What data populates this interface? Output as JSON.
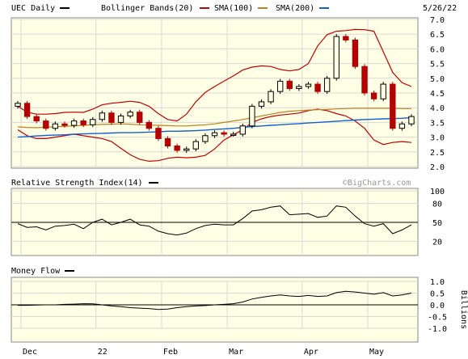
{
  "header": {
    "ticker_label": "UEC Daily",
    "bb_label": "Bollinger Bands(20)",
    "sma100_label": "SMA(100)",
    "sma200_label": "SMA(200)",
    "date": "5/26/22"
  },
  "colors": {
    "panel_bg": "#ffffe5",
    "grid": "#d8d8d8",
    "up_candle": "#000000",
    "down_candle": "#b40000",
    "bollinger": "#c00000",
    "sma100": "#c08020",
    "sma200": "#1060d0",
    "line": "#000000"
  },
  "watermark": "©BigCharts.com",
  "chart_data": [
    {
      "type": "candlestick",
      "title": "UEC Daily",
      "x_labels": [
        "Dec",
        "22",
        "Feb",
        "Mar",
        "Apr",
        "May"
      ],
      "y_ticks": [
        "7.0",
        "6.5",
        "6.0",
        "5.5",
        "5.0",
        "4.5",
        "4.0",
        "3.5",
        "3.0",
        "2.5",
        "2.0"
      ],
      "ylim": [
        2.0,
        7.0
      ],
      "grid": true,
      "series": [
        {
          "name": "Bollinger Bands(20)",
          "upper": [
            4.05,
            3.85,
            3.78,
            3.78,
            3.8,
            3.84,
            3.85,
            3.84,
            3.95,
            4.1,
            4.15,
            4.18,
            4.22,
            4.18,
            4.05,
            3.8,
            3.6,
            3.55,
            3.78,
            4.2,
            4.52,
            4.72,
            4.9,
            5.08,
            5.28,
            5.38,
            5.42,
            5.4,
            5.3,
            5.25,
            5.3,
            5.5,
            6.1,
            6.48,
            6.6,
            6.62,
            6.66,
            6.65,
            6.6,
            5.9,
            5.2,
            4.85,
            4.72
          ],
          "lower": [
            3.25,
            3.05,
            2.95,
            2.95,
            3.0,
            3.05,
            3.1,
            3.05,
            3.0,
            2.95,
            2.85,
            2.62,
            2.4,
            2.25,
            2.18,
            2.2,
            2.28,
            2.32,
            2.3,
            2.32,
            2.38,
            2.6,
            2.9,
            3.08,
            3.25,
            3.5,
            3.62,
            3.7,
            3.75,
            3.78,
            3.82,
            3.9,
            3.95,
            3.9,
            3.8,
            3.72,
            3.55,
            3.3,
            2.9,
            2.75,
            2.82,
            2.85,
            2.82
          ]
        },
        {
          "name": "SMA(100)",
          "values": [
            3.35,
            3.33,
            3.32,
            3.34,
            3.35,
            3.37,
            3.38,
            3.4,
            3.42,
            3.43,
            3.44,
            3.45,
            3.44,
            3.42,
            3.41,
            3.4,
            3.39,
            3.38,
            3.38,
            3.4,
            3.42,
            3.45,
            3.5,
            3.55,
            3.6,
            3.66,
            3.72,
            3.78,
            3.84,
            3.88,
            3.9,
            3.92,
            3.93,
            3.94,
            3.96,
            3.97,
            3.98,
            3.98,
            3.98,
            3.98,
            3.98,
            3.97,
            3.97
          ]
        },
        {
          "name": "SMA(200)",
          "values": [
            3.0,
            3.02,
            3.04,
            3.06,
            3.07,
            3.08,
            3.1,
            3.11,
            3.12,
            3.13,
            3.14,
            3.15,
            3.15,
            3.16,
            3.17,
            3.18,
            3.2,
            3.2,
            3.21,
            3.22,
            3.24,
            3.26,
            3.28,
            3.3,
            3.33,
            3.36,
            3.38,
            3.4,
            3.42,
            3.44,
            3.46,
            3.48,
            3.5,
            3.52,
            3.54,
            3.56,
            3.58,
            3.6,
            3.61,
            3.62,
            3.63,
            3.64,
            3.66
          ]
        },
        {
          "name": "UEC Daily",
          "close": [
            4.15,
            3.7,
            3.55,
            3.3,
            3.45,
            3.4,
            3.55,
            3.42,
            3.6,
            3.82,
            3.5,
            3.72,
            3.85,
            3.5,
            3.3,
            2.95,
            2.7,
            2.55,
            2.6,
            2.85,
            3.05,
            3.15,
            3.1,
            3.1,
            3.38,
            4.05,
            4.2,
            4.55,
            4.9,
            4.65,
            4.72,
            4.8,
            4.55,
            5.0,
            6.42,
            6.3,
            5.4,
            4.5,
            4.3,
            4.8,
            3.3,
            3.45,
            3.7
          ]
        }
      ]
    },
    {
      "type": "line",
      "title": "Relative Strength Index(14)",
      "y_ticks": [
        "100",
        "80",
        "50",
        "20"
      ],
      "ylim": [
        0,
        100
      ],
      "reference_line": 50,
      "series": [
        {
          "name": "Relative Strength Index(14)",
          "values": [
            48,
            42,
            43,
            38,
            44,
            45,
            47,
            40,
            50,
            55,
            46,
            50,
            55,
            46,
            44,
            36,
            32,
            30,
            33,
            40,
            45,
            47,
            46,
            46,
            56,
            68,
            70,
            74,
            76,
            62,
            63,
            64,
            58,
            60,
            76,
            74,
            60,
            48,
            44,
            48,
            32,
            38,
            46
          ]
        }
      ]
    },
    {
      "type": "line",
      "title": "Money Flow",
      "y_ticks": [
        "1.0",
        "0.5",
        "0.0",
        "-0.5",
        "-1.0"
      ],
      "ylabel": "Billions",
      "ylim": [
        -1.0,
        1.0
      ],
      "reference_line": 0.0,
      "series": [
        {
          "name": "Money Flow",
          "values": [
            -0.02,
            -0.02,
            -0.01,
            0.0,
            0.0,
            0.02,
            0.03,
            0.05,
            0.04,
            0.0,
            -0.05,
            -0.08,
            -0.12,
            -0.14,
            -0.16,
            -0.2,
            -0.18,
            -0.12,
            -0.08,
            -0.05,
            -0.03,
            0.0,
            0.02,
            0.05,
            0.12,
            0.25,
            0.32,
            0.38,
            0.42,
            0.38,
            0.36,
            0.4,
            0.36,
            0.38,
            0.52,
            0.58,
            0.55,
            0.5,
            0.45,
            0.52,
            0.38,
            0.42,
            0.5
          ]
        }
      ]
    }
  ]
}
